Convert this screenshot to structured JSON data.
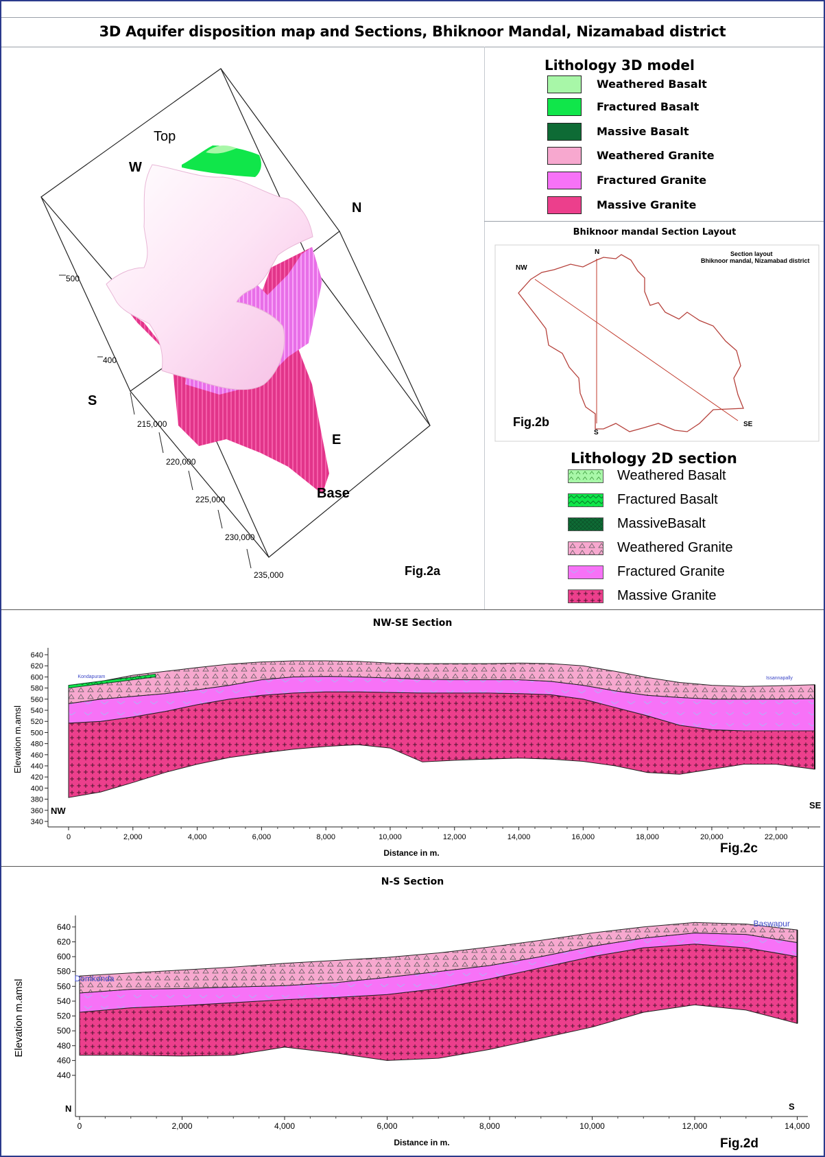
{
  "page": {
    "title": "3D Aquifer disposition map and Sections, Bhiknoor Mandal, Nizamabad district"
  },
  "colors": {
    "weathered_basalt": "#a8f7a8",
    "fractured_basalt": "#10e64a",
    "massive_basalt": "#0e6b35",
    "weathered_granite": "#f7a8cf",
    "fractured_granite": "#f772f7",
    "massive_granite": "#ec3f8c",
    "frame_blue": "#2b3a8c",
    "layout_line": "#c0392b"
  },
  "model3d": {
    "labels": {
      "top": "Top",
      "base": "Base",
      "w": "W",
      "n": "N",
      "s": "S",
      "e": "E"
    },
    "z_ticks": [
      "500",
      "400"
    ],
    "y_ticks": [
      "215,000",
      "220,000",
      "225,000",
      "230,000",
      "235,000"
    ],
    "fig": "Fig.2a"
  },
  "legend3d": {
    "title": "Lithology 3D model",
    "items": [
      "Weathered Basalt",
      "Fractured Basalt",
      "Massive Basalt",
      "Weathered Granite",
      "Fractured Granite",
      "Massive Granite"
    ]
  },
  "layout": {
    "title": "Bhiknoor mandal Section Layout",
    "inner_title_1": "Section layout",
    "inner_title_2": "Bhiknoor mandal, Nizamabad district",
    "labels": {
      "n": "N",
      "nw": "NW",
      "s": "S",
      "se": "SE"
    },
    "fig": "Fig.2b"
  },
  "legend2d": {
    "title": "Lithology 2D section",
    "items": [
      "Weathered Basalt",
      "Fractured Basalt",
      "MassiveBasalt",
      "Weathered Granite",
      "Fractured Granite",
      "Massive Granite"
    ]
  },
  "chart_data": [
    {
      "type": "area",
      "title": "NW-SE Section",
      "xlabel": "Distance in m.",
      "ylabel": "Elevation m.amsl",
      "xlim": [
        0,
        23200
      ],
      "ylim": [
        340,
        645
      ],
      "xticks": [
        0,
        2000,
        4000,
        6000,
        8000,
        10000,
        12000,
        14000,
        16000,
        18000,
        20000,
        22000
      ],
      "xtick_labels": [
        "0",
        "2,000",
        "4,000",
        "6,000",
        "8,000",
        "10,000",
        "12,000",
        "14,000",
        "16,000",
        "18,000",
        "20,000",
        "22,000"
      ],
      "yticks": [
        340,
        360,
        380,
        400,
        420,
        440,
        460,
        480,
        500,
        520,
        540,
        560,
        580,
        600,
        620,
        640
      ],
      "end_labels": {
        "left": "NW",
        "right": "SE"
      },
      "locations": [
        {
          "name": "Kondapuram",
          "x": 200
        },
        {
          "name": "Issannapally",
          "x": 22600
        }
      ],
      "fig": "Fig.2c",
      "x": [
        0,
        1000,
        2000,
        3000,
        4000,
        5000,
        6000,
        7000,
        8000,
        9000,
        10000,
        11000,
        12000,
        13000,
        14000,
        15000,
        16000,
        17000,
        18000,
        19000,
        20000,
        21000,
        22000,
        23200
      ],
      "series": [
        {
          "name": "Weathered Granite",
          "top": [
            582,
            592,
            603,
            610,
            617,
            623,
            627,
            629,
            629,
            628,
            625,
            624,
            624,
            624,
            625,
            624,
            620,
            610,
            599,
            590,
            585,
            583,
            584,
            586
          ]
        },
        {
          "name": "Fractured Granite",
          "top": [
            552,
            560,
            565,
            570,
            577,
            585,
            595,
            600,
            601,
            600,
            598,
            596,
            595,
            595,
            595,
            592,
            585,
            575,
            567,
            563,
            560,
            560,
            560,
            561
          ]
        },
        {
          "name": "Massive Granite",
          "top": [
            517,
            520,
            528,
            538,
            550,
            560,
            567,
            571,
            573,
            573,
            572,
            571,
            571,
            571,
            570,
            568,
            560,
            545,
            530,
            513,
            505,
            503,
            503,
            503
          ]
        },
        {
          "name": "Massive Granite",
          "bottom": [
            383,
            393,
            410,
            428,
            443,
            455,
            463,
            470,
            475,
            478,
            472,
            447,
            450,
            452,
            454,
            452,
            448,
            440,
            428,
            425,
            434,
            443,
            443,
            434
          ]
        }
      ],
      "basalt_cap": {
        "x": [
          0,
          2700
        ],
        "top": [
          585,
          605
        ],
        "bottom": [
          580,
          600
        ]
      }
    },
    {
      "type": "area",
      "title": "N-S Section",
      "xlabel": "Distance in m.",
      "ylabel": "Elevation m.amsl",
      "xlim": [
        0,
        14100
      ],
      "ylim": [
        440,
        650
      ],
      "xticks": [
        0,
        2000,
        4000,
        6000,
        8000,
        10000,
        12000,
        14000
      ],
      "xtick_labels": [
        "0",
        "2,000",
        "4,000",
        "6,000",
        "8,000",
        "10,000",
        "12,000",
        "14,000"
      ],
      "yticks": [
        440,
        460,
        480,
        500,
        520,
        540,
        560,
        580,
        600,
        620,
        640
      ],
      "end_labels": {
        "left": "N",
        "right": "S"
      },
      "locations": [
        {
          "name": "Domkonda",
          "x": -100
        },
        {
          "name": "Baswapur",
          "x": 13500
        }
      ],
      "fig": "Fig.2d",
      "x": [
        0,
        1000,
        2000,
        3000,
        4000,
        5000,
        6000,
        7000,
        8000,
        9000,
        10000,
        11000,
        12000,
        13000,
        14000
      ],
      "series": [
        {
          "name": "Weathered Granite",
          "top": [
            574,
            578,
            582,
            586,
            591,
            595,
            599,
            605,
            613,
            622,
            632,
            640,
            646,
            644,
            636
          ]
        },
        {
          "name": "Fractured Granite",
          "top": [
            551,
            556,
            557,
            559,
            561,
            565,
            572,
            580,
            588,
            600,
            614,
            625,
            632,
            630,
            619
          ]
        },
        {
          "name": "Massive Granite",
          "top": [
            525,
            531,
            534,
            538,
            542,
            545,
            549,
            557,
            570,
            585,
            600,
            612,
            617,
            612,
            600
          ]
        },
        {
          "name": "Massive Granite",
          "bottom": [
            467,
            467,
            466,
            467,
            478,
            470,
            460,
            463,
            475,
            490,
            505,
            525,
            535,
            528,
            510
          ]
        }
      ]
    }
  ]
}
